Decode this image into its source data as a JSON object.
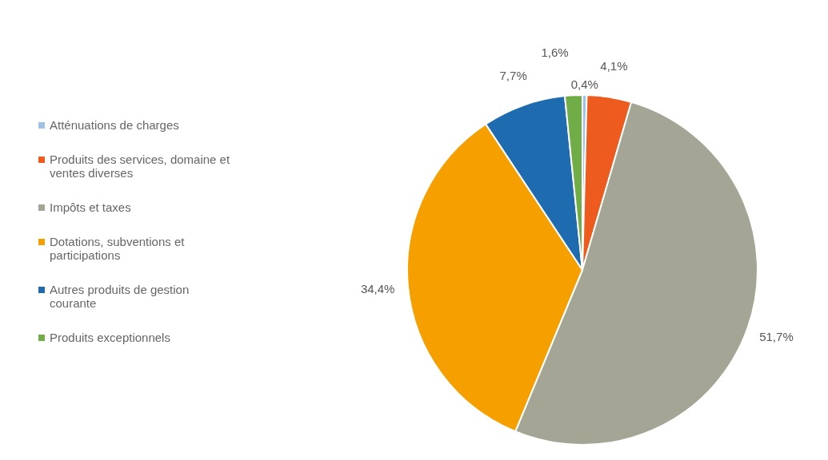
{
  "chart_data": {
    "type": "pie",
    "categories": [
      "Atténuations de charges",
      "Produits des services, domaine et ventes diverses",
      "Impôts et taxes",
      "Dotations, subventions et participations",
      "Autres produits de gestion courante",
      "Produits exceptionnels"
    ],
    "values": [
      0.4,
      4.1,
      51.7,
      34.4,
      7.7,
      1.6
    ],
    "colors": [
      "#9dc3e6",
      "#ed5c1e",
      "#a5a596",
      "#f5a000",
      "#1f6bb0",
      "#70ad47"
    ],
    "value_labels": [
      "0,4%",
      "4,1%",
      "51,7%",
      "34,4%",
      "7,7%",
      "1,6%"
    ],
    "legend": "left"
  }
}
